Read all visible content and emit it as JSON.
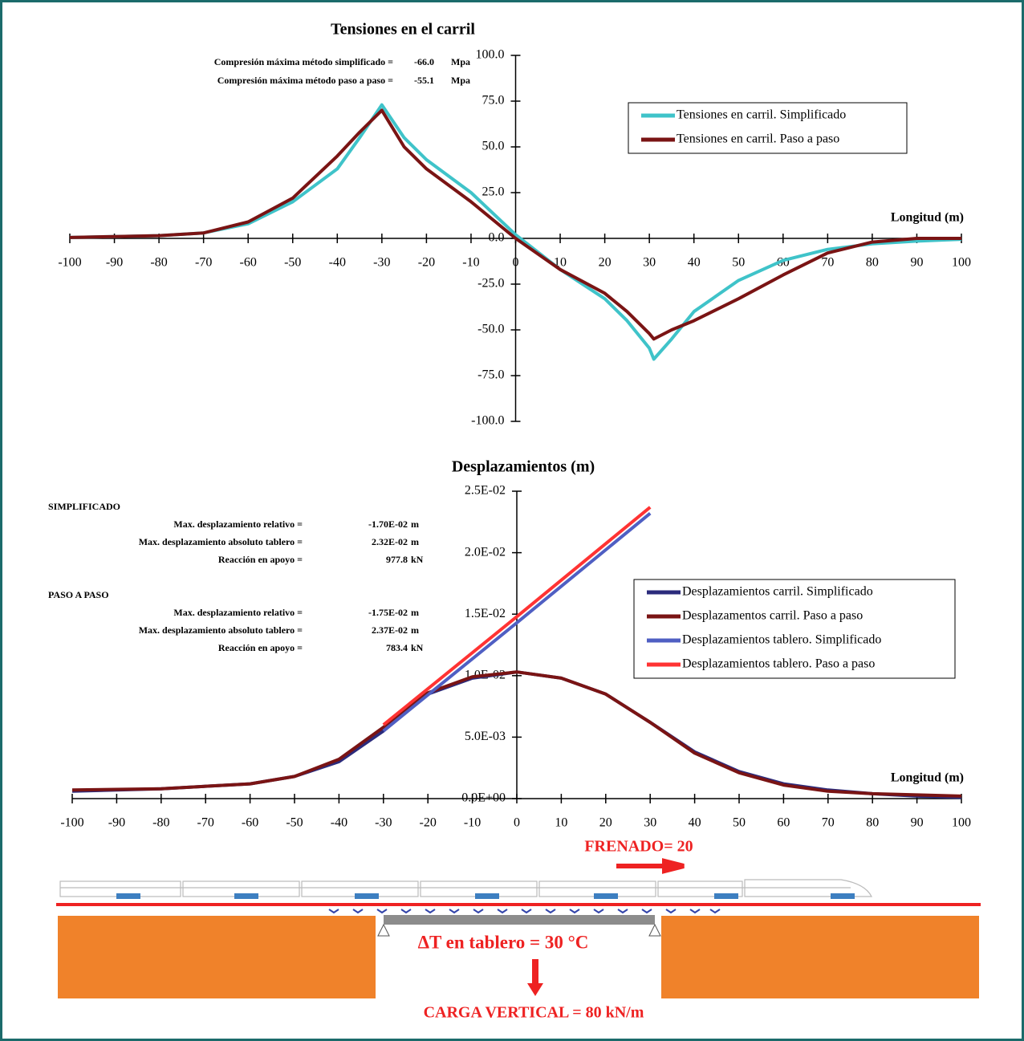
{
  "chart_data": [
    {
      "type": "line",
      "title": "Tensiones en el carril",
      "x_label": "Longitud (m)",
      "xlim": [
        -100,
        100
      ],
      "xticks": [
        -100,
        -90,
        -80,
        -70,
        -60,
        -50,
        -40,
        -30,
        -20,
        -10,
        0,
        10,
        20,
        30,
        40,
        50,
        60,
        70,
        80,
        90,
        100
      ],
      "ylim": [
        -100,
        100
      ],
      "yticks": [
        {
          "value": -100,
          "label": "-100.0"
        },
        {
          "value": -75,
          "label": "-75.0"
        },
        {
          "value": -50,
          "label": "-50.0"
        },
        {
          "value": -25,
          "label": "-25.0"
        },
        {
          "value": 0,
          "label": "0.0"
        },
        {
          "value": 25,
          "label": "25.0"
        },
        {
          "value": 50,
          "label": "50.0"
        },
        {
          "value": 75,
          "label": "75.0"
        },
        {
          "value": 100,
          "label": "100.0"
        }
      ],
      "annotations": [
        {
          "label": "Compresión máxima método simplificado =",
          "value": "-66.0",
          "unit": "Mpa"
        },
        {
          "label": "Compresión máxima método paso a paso =",
          "value": "-55.1",
          "unit": "Mpa"
        }
      ],
      "series": [
        {
          "name": "Tensiones en carril. Simplificado",
          "color": "#3fc3c9",
          "x": [
            -100,
            -90,
            -80,
            -70,
            -60,
            -50,
            -40,
            -35,
            -30,
            -25,
            -20,
            -10,
            0,
            10,
            20,
            25,
            30,
            31,
            35,
            40,
            50,
            60,
            70,
            80,
            90,
            100
          ],
          "values": [
            0.5,
            1,
            1.5,
            3,
            8,
            20,
            38,
            55,
            73,
            55,
            43,
            25,
            2,
            -17,
            -33,
            -45,
            -60,
            -66,
            -55,
            -40,
            -23,
            -12,
            -6,
            -3,
            -1.5,
            -0.5
          ]
        },
        {
          "name": "Tensiones en carril. Paso a paso",
          "color": "#7a1414",
          "x": [
            -100,
            -90,
            -80,
            -70,
            -60,
            -50,
            -40,
            -35,
            -30,
            -25,
            -20,
            -10,
            0,
            10,
            20,
            25,
            30,
            31,
            35,
            40,
            50,
            60,
            70,
            80,
            90,
            100
          ],
          "values": [
            0.5,
            1,
            1.5,
            3,
            9,
            22,
            45,
            58,
            70,
            50,
            38,
            20,
            0,
            -17,
            -30,
            -40,
            -52,
            -55,
            -50,
            -45,
            -33,
            -20,
            -8,
            -2,
            0,
            0
          ]
        }
      ]
    },
    {
      "type": "line",
      "title": "Desplazamientos (m)",
      "x_label": "Longitud (m)",
      "xlim": [
        -100,
        100
      ],
      "xticks": [
        -100,
        -90,
        -80,
        -70,
        -60,
        -50,
        -40,
        -30,
        -20,
        -10,
        0,
        10,
        20,
        30,
        40,
        50,
        60,
        70,
        80,
        90,
        100
      ],
      "ylim": [
        0,
        0.025
      ],
      "yticks": [
        {
          "value": 0,
          "label": "0.0E+00"
        },
        {
          "value": 0.005,
          "label": "5.0E-03"
        },
        {
          "value": 0.01,
          "label": "1.0E-02"
        },
        {
          "value": 0.015,
          "label": "1.5E-02"
        },
        {
          "value": 0.02,
          "label": "2.0E-02"
        },
        {
          "value": 0.025,
          "label": "2.5E-02"
        }
      ],
      "annotation_groups": [
        {
          "heading": "SIMPLIFICADO",
          "rows": [
            {
              "label": "Max. desplazamiento relativo =",
              "value": "-1.70E-02",
              "unit": "m"
            },
            {
              "label": "Max. desplazamiento absoluto tablero =",
              "value": "2.32E-02",
              "unit": "m"
            },
            {
              "label": "Reacción en apoyo =",
              "value": "977.8",
              "unit": "kN"
            }
          ]
        },
        {
          "heading": "PASO A PASO",
          "rows": [
            {
              "label": "Max. desplazamiento relativo =",
              "value": "-1.75E-02",
              "unit": "m"
            },
            {
              "label": "Max. desplazamiento absoluto tablero =",
              "value": "2.37E-02",
              "unit": "m"
            },
            {
              "label": "Reacción en apoyo =",
              "value": "783.4",
              "unit": "kN"
            }
          ]
        }
      ],
      "series": [
        {
          "name": "Desplazamientos carril. Simplificado",
          "color": "#2b2b7c",
          "x": [
            -100,
            -80,
            -60,
            -50,
            -40,
            -30,
            -20,
            -10,
            0,
            10,
            20,
            30,
            40,
            50,
            60,
            70,
            80,
            90,
            100
          ],
          "values": [
            0.0006,
            0.0008,
            0.0012,
            0.0018,
            0.003,
            0.0055,
            0.0085,
            0.0098,
            0.0103,
            0.0098,
            0.0085,
            0.0062,
            0.0038,
            0.0022,
            0.0012,
            0.0007,
            0.0004,
            0.0002,
            0.0001
          ]
        },
        {
          "name": "Desplazamentos carril. Paso a paso",
          "color": "#7a1414",
          "x": [
            -100,
            -80,
            -60,
            -50,
            -40,
            -30,
            -20,
            -10,
            0,
            10,
            20,
            30,
            40,
            50,
            60,
            70,
            80,
            90,
            100
          ],
          "values": [
            0.0007,
            0.0008,
            0.0012,
            0.0018,
            0.0032,
            0.0058,
            0.0086,
            0.0099,
            0.0103,
            0.0098,
            0.0085,
            0.0062,
            0.0037,
            0.0021,
            0.0011,
            0.0006,
            0.0004,
            0.0003,
            0.0002
          ]
        },
        {
          "name": "Desplazamientos tablero. Simplificado",
          "color": "#4f5fc3",
          "x": [
            -30,
            0,
            30
          ],
          "values": [
            0.0055,
            0.0143,
            0.0232
          ]
        },
        {
          "name": "Desplazamientos tablero. Paso a paso",
          "color": "#ff3333",
          "x": [
            -30,
            0,
            30
          ],
          "values": [
            0.006,
            0.0148,
            0.0237
          ]
        }
      ]
    }
  ],
  "diagram": {
    "braking_label": "FRENADO= 20",
    "thermal_label": "ΔT en tablero = 30 °C",
    "vertical_load_label": "CARGA VERTICAL = 80 kN/m"
  }
}
